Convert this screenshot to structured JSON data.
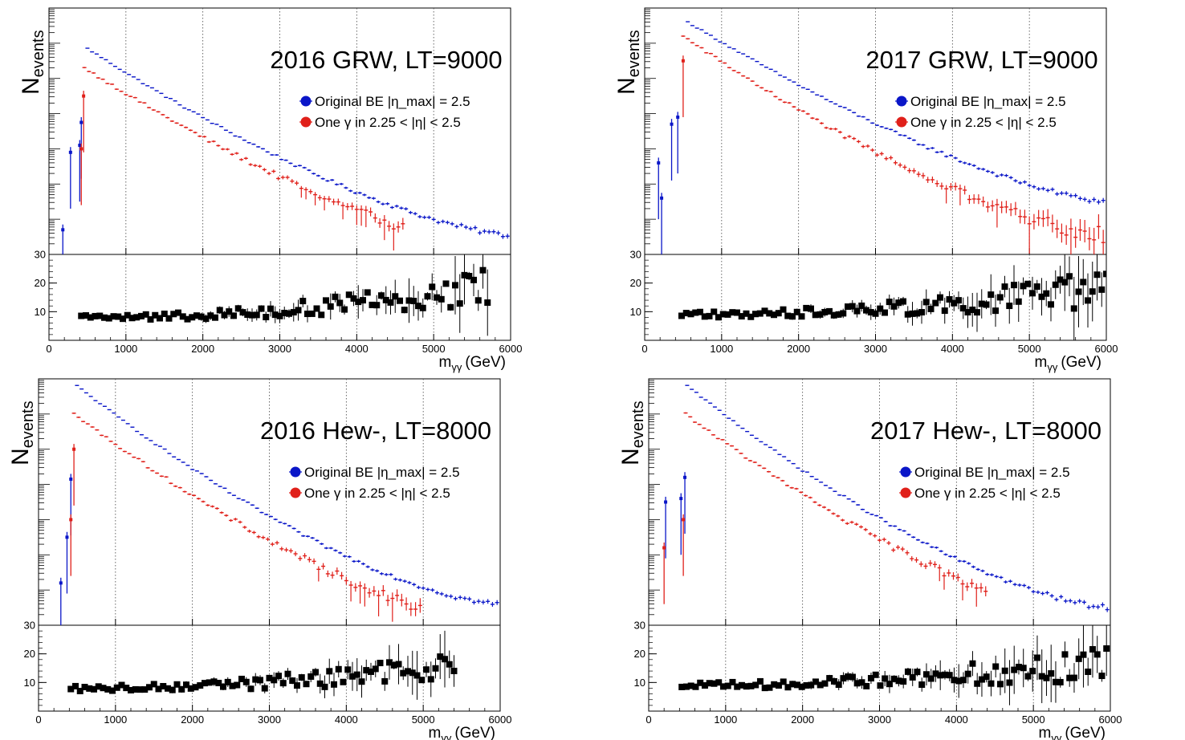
{
  "colors": {
    "original": "#0a16c8",
    "one_gamma": "#e0201a",
    "ratio": "#000000"
  },
  "chart_data": [
    {
      "type": "scatter",
      "title": "2016 GRW, LT=9000",
      "ylabel": "N",
      "ylabel_sub": "events",
      "xlabel": "m",
      "xlabel_sub": "γγ",
      "xlabel_unit": "(GeV)",
      "xlim": [
        0,
        6000
      ],
      "x_ticks": [
        "0",
        "1000",
        "2000",
        "3000",
        "4000",
        "5000",
        "6000"
      ],
      "ratio_ylim": [
        0,
        30
      ],
      "ratio_ticks": [
        "10",
        "20",
        "30"
      ],
      "log_y": true,
      "grid_x": true,
      "legend_position": "right",
      "series": [
        {
          "name": "Original BE |η_max| = 2.5",
          "start_x": 500,
          "start_log": 5.85,
          "end_log": 0.55,
          "curve": 0.45,
          "low_points": [
            [
              180,
              0.7
            ],
            [
              280,
              2.9
            ],
            [
              400,
              3.1
            ],
            [
              420,
              3.75
            ]
          ]
        },
        {
          "name": "One γ in 2.25 < |η| < 2.5",
          "start_x": 460,
          "start_log": 5.3,
          "end_log": 0.05,
          "cutoff_x": 4600,
          "curve": 0.45,
          "low_points": [
            [
              420,
              3.0
            ],
            [
              450,
              4.5
            ]
          ]
        }
      ],
      "ratio": {
        "start_x": 420,
        "level": 8,
        "growth": 10,
        "cutoff_x": 5700
      }
    },
    {
      "type": "scatter",
      "title": "2017 GRW, LT=9000",
      "ylabel": "N",
      "ylabel_sub": "events",
      "xlabel": "m",
      "xlabel_sub": "γγ",
      "xlabel_unit": "(GeV)",
      "xlim": [
        0,
        6000
      ],
      "x_ticks": [
        "0",
        "1000",
        "2000",
        "3000",
        "4000",
        "5000",
        "6000"
      ],
      "ratio_ylim": [
        0,
        30
      ],
      "ratio_ticks": [
        "10",
        "20",
        "30"
      ],
      "log_y": true,
      "grid_x": true,
      "legend_position": "right",
      "series": [
        {
          "name": "Original BE |η_max| = 2.5",
          "start_x": 560,
          "start_log": 6.6,
          "end_log": 1.5,
          "curve": 0.4,
          "low_points": [
            [
              180,
              2.6
            ],
            [
              220,
              1.6
            ],
            [
              350,
              3.7
            ],
            [
              430,
              3.9
            ]
          ]
        },
        {
          "name": "One γ in 2.25 < |η| < 2.5",
          "start_x": 500,
          "start_log": 6.2,
          "end_log": 0.55,
          "cutoff_x": 6000,
          "curve": 0.45,
          "low_points": [
            [
              500,
              5.5
            ]
          ]
        }
      ],
      "ratio": {
        "start_x": 480,
        "level": 9,
        "growth": 8,
        "cutoff_x": 6000
      }
    },
    {
      "type": "scatter",
      "title": "2016 Hew-, LT=8000",
      "ylabel": "N",
      "ylabel_sub": "events",
      "xlabel": "m",
      "xlabel_sub": "γγ",
      "xlabel_unit": "(GeV)",
      "xlim": [
        0,
        6000
      ],
      "x_ticks": [
        "0",
        "1000",
        "2000",
        "3000",
        "4000",
        "5000",
        "6000"
      ],
      "ratio_ylim": [
        0,
        30
      ],
      "ratio_ticks": [
        "10",
        "20",
        "30"
      ],
      "log_y": true,
      "grid_x": true,
      "legend_position": "right",
      "series": [
        {
          "name": "Original BE |η_max| = 2.5",
          "start_x": 500,
          "start_log": 6.8,
          "end_log": 0.6,
          "curve": 0.5,
          "low_points": [
            [
              290,
              1.2
            ],
            [
              370,
              2.5
            ],
            [
              420,
              4.15
            ]
          ]
        },
        {
          "name": "One γ in 2.25 < |η| < 2.5",
          "start_x": 460,
          "start_log": 6.0,
          "end_log": 0.02,
          "cutoff_x": 5000,
          "curve": 0.5,
          "low_points": [
            [
              420,
              3.0
            ],
            [
              460,
              5.0
            ]
          ]
        }
      ],
      "ratio": {
        "start_x": 420,
        "level": 8,
        "growth": 8,
        "cutoff_x": 5400
      }
    },
    {
      "type": "scatter",
      "title": "2017 Hew-, LT=8000",
      "ylabel": "N",
      "ylabel_sub": "events",
      "xlabel": "m",
      "xlabel_sub": "γγ",
      "xlabel_unit": "(GeV)",
      "xlim": [
        0,
        6000
      ],
      "x_ticks": [
        "0",
        "1000",
        "2000",
        "3000",
        "4000",
        "5000",
        "6000"
      ],
      "ratio_ylim": [
        0,
        30
      ],
      "ratio_ticks": [
        "10",
        "20",
        "30"
      ],
      "log_y": true,
      "grid_x": true,
      "legend_position": "right",
      "series": [
        {
          "name": "Original BE |η_max| = 2.5",
          "start_x": 500,
          "start_log": 6.8,
          "end_log": 0.5,
          "curve": 0.5,
          "low_points": [
            [
              220,
              3.5
            ],
            [
              420,
              3.6
            ],
            [
              470,
              4.2
            ]
          ]
        },
        {
          "name": "One γ in 2.25 < |η| < 2.5",
          "start_x": 480,
          "start_log": 6.0,
          "end_log": 0.05,
          "cutoff_x": 4400,
          "curve": 0.5,
          "low_points": [
            [
              200,
              2.2
            ],
            [
              450,
              3.0
            ]
          ]
        }
      ],
      "ratio": {
        "start_x": 430,
        "level": 9,
        "growth": 7,
        "cutoff_x": 6000
      }
    }
  ]
}
